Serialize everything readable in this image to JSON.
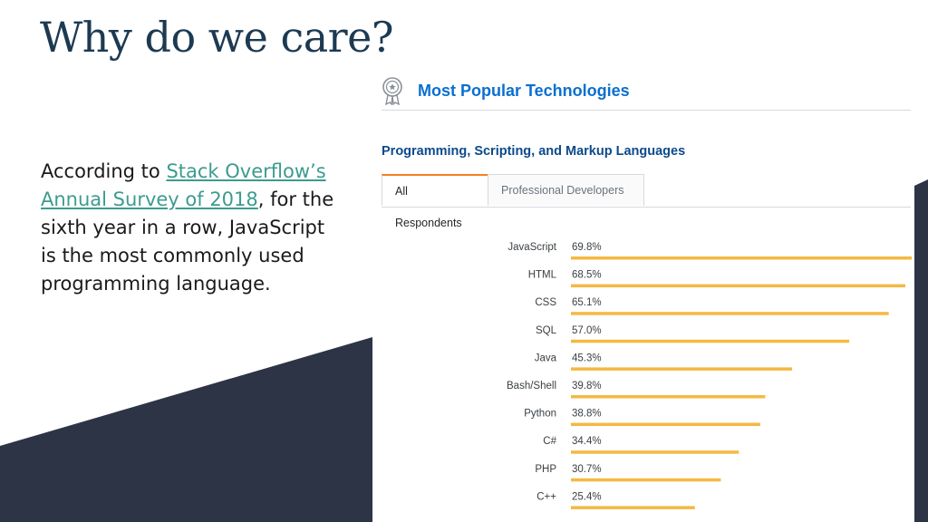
{
  "slide": {
    "title": "Why do we care?",
    "text_before_link": "According to ",
    "link_text": "Stack Overflow’s Annual Survey of 2018",
    "text_after_link": ", for the sixth year in a row, JavaScript is the most commonly used programming language.",
    "colors": {
      "title": "#1c3a52",
      "link": "#3d9b8f",
      "background_shape": "#2d3446"
    }
  },
  "survey": {
    "header_title": "Most Popular Technologies",
    "header_icon": "medal-icon",
    "section_title": "Programming, Scripting, and Markup Languages",
    "tabs": [
      {
        "label": "All Respondents",
        "active": true
      },
      {
        "label": "Professional Developers",
        "active": false
      }
    ]
  },
  "chart_data": {
    "type": "bar",
    "orientation": "horizontal",
    "categories": [
      "JavaScript",
      "HTML",
      "CSS",
      "SQL",
      "Java",
      "Bash/Shell",
      "Python",
      "C#",
      "PHP",
      "C++"
    ],
    "values": [
      69.8,
      68.5,
      65.1,
      57.0,
      45.3,
      39.8,
      38.8,
      34.4,
      30.7,
      25.4
    ],
    "value_labels": [
      "69.8%",
      "68.5%",
      "65.1%",
      "57.0%",
      "45.3%",
      "39.8%",
      "38.8%",
      "34.4%",
      "30.7%",
      "25.4%"
    ],
    "bar_color": "#f4b942",
    "xlim": [
      0,
      69.8
    ],
    "grid": false,
    "legend": "none"
  }
}
